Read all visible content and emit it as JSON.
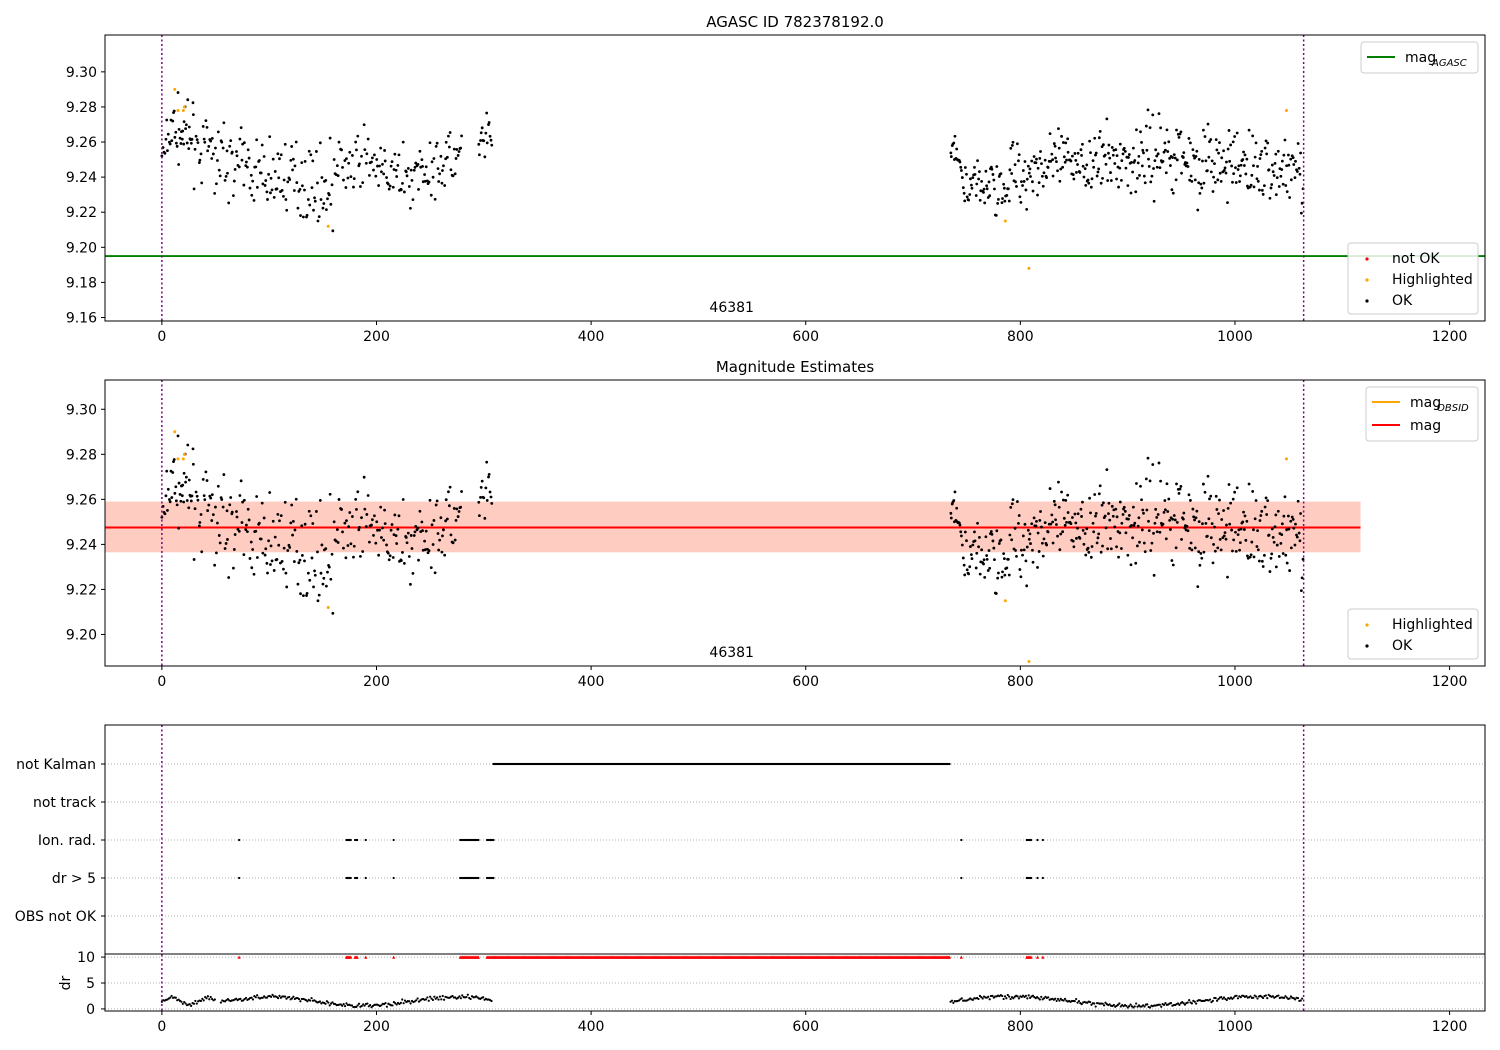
{
  "chart_data": [
    {
      "type": "scatter",
      "title": "AGASC ID 782378192.0",
      "xlim": [
        -53,
        1233
      ],
      "ylim": [
        9.158,
        9.321
      ],
      "xticks": [
        "0",
        "200",
        "400",
        "600",
        "800",
        "1000",
        "1200"
      ],
      "yticks": [
        "9.16",
        "9.18",
        "9.20",
        "9.22",
        "9.24",
        "9.26",
        "9.28",
        "9.30"
      ],
      "obsid_label": "46381",
      "obsid_label_x": 531,
      "boundaries": [
        0,
        1064
      ],
      "mag_agasc": 9.195,
      "line_legend": [
        {
          "name": "mag",
          "sub": "AGASC",
          "color": "#008000"
        }
      ],
      "point_legend": [
        {
          "name": "not OK",
          "color": "#ff0000"
        },
        {
          "name": "Highlighted",
          "color": "#ffa500"
        },
        {
          "name": "OK",
          "color": "#000000"
        }
      ],
      "series": [
        {
          "name": "OK",
          "color": "#000000",
          "source": "samples.ok"
        },
        {
          "name": "Highlighted",
          "color": "#ffa500",
          "source": "samples.highlighted"
        }
      ]
    },
    {
      "type": "scatter",
      "title": "Magnitude Estimates",
      "xlim": [
        -53,
        1233
      ],
      "ylim": [
        9.186,
        9.313
      ],
      "xticks": [
        "0",
        "200",
        "400",
        "600",
        "800",
        "1000",
        "1200"
      ],
      "yticks": [
        "9.20",
        "9.22",
        "9.24",
        "9.26",
        "9.28",
        "9.30"
      ],
      "obsid_label": "46381",
      "obsid_label_x": 531,
      "boundaries": [
        0,
        1064
      ],
      "mag": 9.2475,
      "mag_obsid": 9.2475,
      "band_obsid": [
        9.2365,
        9.259
      ],
      "band_mag": [
        9.2365,
        9.259
      ],
      "band_end_x": 1117,
      "line_legend": [
        {
          "name": "mag",
          "sub": "OBSID",
          "color": "#ffa500"
        },
        {
          "name": "mag",
          "sub": "",
          "color": "#ff0000"
        }
      ],
      "point_legend": [
        {
          "name": "Highlighted",
          "color": "#ffa500"
        },
        {
          "name": "OK",
          "color": "#000000"
        }
      ],
      "series": [
        {
          "name": "OK",
          "color": "#000000",
          "source": "samples.ok"
        },
        {
          "name": "Highlighted",
          "color": "#ffa500",
          "source": "samples.highlighted"
        }
      ]
    },
    {
      "type": "scatter",
      "xlim": [
        -53,
        1233
      ],
      "xticks": [
        "0",
        "200",
        "400",
        "600",
        "800",
        "1000",
        "1200"
      ],
      "boundaries": [
        0,
        1064
      ],
      "flag_rows": [
        "not Kalman",
        "not track",
        "Ion. rad.",
        "dr > 5",
        "OBS not OK"
      ],
      "flags": {
        "not Kalman": [
          [
            309,
            734
          ]
        ],
        "not track": [],
        "Ion. rad.": [
          [
            72,
            72
          ],
          [
            172,
            176
          ],
          [
            180,
            182
          ],
          [
            190,
            190
          ],
          [
            216,
            216
          ],
          [
            278,
            295
          ],
          [
            303,
            309
          ],
          [
            745,
            745
          ],
          [
            806,
            810
          ],
          [
            816,
            816
          ],
          [
            821,
            821
          ]
        ],
        "dr > 5": [
          [
            72,
            72
          ],
          [
            172,
            176
          ],
          [
            180,
            182
          ],
          [
            190,
            190
          ],
          [
            216,
            216
          ],
          [
            278,
            295
          ],
          [
            303,
            309
          ],
          [
            745,
            745
          ],
          [
            806,
            810
          ],
          [
            816,
            816
          ],
          [
            821,
            821
          ]
        ],
        "OBS not OK": []
      },
      "dr": {
        "ylabel": "dr",
        "ylim": [
          -0.4,
          10.6
        ],
        "yticks": [
          "0",
          "5",
          "10"
        ],
        "clip_value": 10,
        "segments": [
          {
            "x": [
              0,
              50
            ],
            "y": [
              0.7,
              2.2
            ]
          },
          {
            "x": [
              55,
              308
            ],
            "y": [
              0.6,
              2.3
            ]
          },
          {
            "x": [
              735,
              1063
            ],
            "y": [
              0.5,
              2.4
            ]
          }
        ],
        "clipped": [
          [
            72,
            72
          ],
          [
            172,
            176
          ],
          [
            180,
            182
          ],
          [
            190,
            190
          ],
          [
            216,
            216
          ],
          [
            278,
            295
          ],
          [
            303,
            734
          ],
          [
            745,
            745
          ],
          [
            806,
            810
          ],
          [
            816,
            816
          ],
          [
            821,
            821
          ]
        ]
      }
    }
  ],
  "samples": {
    "ok": [
      {
        "x": [
          0,
          10
        ],
        "y": [
          9.25,
          9.268
        ],
        "n": 12,
        "noise": 0.008
      },
      {
        "x": [
          10,
          30
        ],
        "y": [
          9.268,
          9.262
        ],
        "n": 30,
        "noise": 0.008
      },
      {
        "x": [
          30,
          70
        ],
        "y": [
          9.258,
          9.248
        ],
        "n": 45,
        "noise": 0.009
      },
      {
        "x": [
          70,
          100
        ],
        "y": [
          9.248,
          9.24
        ],
        "n": 35,
        "noise": 0.009
      },
      {
        "x": [
          100,
          160
        ],
        "y": [
          9.242,
          9.234
        ],
        "n": 70,
        "noise": 0.01
      },
      {
        "x": [
          160,
          200
        ],
        "y": [
          9.245,
          9.248
        ],
        "n": 40,
        "noise": 0.01
      },
      {
        "x": [
          200,
          240
        ],
        "y": [
          9.242,
          9.24
        ],
        "n": 45,
        "noise": 0.008
      },
      {
        "x": [
          240,
          280
        ],
        "y": [
          9.244,
          9.253
        ],
        "n": 45,
        "noise": 0.008
      },
      {
        "x": [
          295,
          308
        ],
        "y": [
          9.255,
          9.262
        ],
        "n": 16,
        "noise": 0.008
      },
      {
        "x": [
          735,
          745
        ],
        "y": [
          9.255,
          9.248
        ],
        "n": 15,
        "noise": 0.006
      },
      {
        "x": [
          745,
          790
        ],
        "y": [
          9.234,
          9.236
        ],
        "n": 60,
        "noise": 0.007
      },
      {
        "x": [
          790,
          860
        ],
        "y": [
          9.243,
          9.25
        ],
        "n": 90,
        "noise": 0.009
      },
      {
        "x": [
          860,
          950
        ],
        "y": [
          9.247,
          9.255
        ],
        "n": 120,
        "noise": 0.01
      },
      {
        "x": [
          950,
          1010
        ],
        "y": [
          9.25,
          9.245
        ],
        "n": 80,
        "noise": 0.01
      },
      {
        "x": [
          1010,
          1064
        ],
        "y": [
          9.247,
          9.244
        ],
        "n": 70,
        "noise": 0.011
      }
    ],
    "highlighted": [
      {
        "x": 12,
        "y": 9.29
      },
      {
        "x": 15,
        "y": 9.278
      },
      {
        "x": 20,
        "y": 9.278
      },
      {
        "x": 21,
        "y": 9.28
      },
      {
        "x": 155,
        "y": 9.212
      },
      {
        "x": 786,
        "y": 9.215
      },
      {
        "x": 808,
        "y": 9.188
      },
      {
        "x": 1048,
        "y": 9.278
      }
    ]
  }
}
